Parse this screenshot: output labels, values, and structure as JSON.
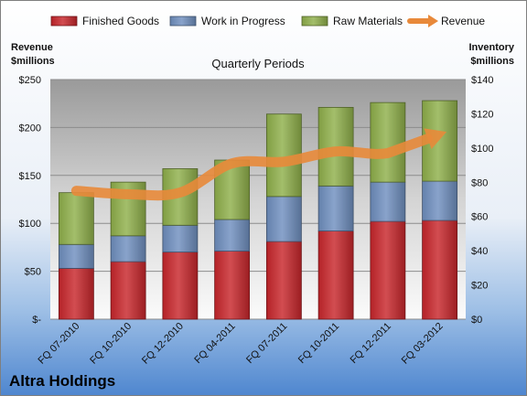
{
  "company": "Altra Holdings",
  "chart_data": {
    "type": "bar",
    "title": "Quarterly Periods",
    "stacked": true,
    "categories": [
      "FQ 07-2010",
      "FQ 10-2010",
      "FQ 12-2010",
      "FQ 04-2011",
      "FQ 07-2011",
      "FQ 10-2011",
      "FQ 12-2011",
      "FQ 03-2012"
    ],
    "series": [
      {
        "name": "Finished Goods",
        "color": "#c8262b",
        "axis": "left",
        "values": [
          53,
          60,
          70,
          71,
          81,
          92,
          102,
          103
        ]
      },
      {
        "name": "Work in Progress",
        "color": "#6f8fbf",
        "axis": "left",
        "values": [
          25,
          27,
          28,
          33,
          47,
          47,
          41,
          41
        ]
      },
      {
        "name": "Raw Materials",
        "color": "#8fb04a",
        "axis": "left",
        "values": [
          54,
          56,
          59,
          62,
          86,
          82,
          83,
          84
        ]
      },
      {
        "name": "Revenue",
        "type": "line",
        "color": "#e8893a",
        "axis": "right",
        "values": [
          75,
          73,
          74,
          91,
          92,
          98,
          97,
          108
        ]
      }
    ],
    "ylabel_left": [
      "Revenue",
      "$millions"
    ],
    "ylabel_right": [
      "Inventory",
      "$millions"
    ],
    "ylim_left": [
      0,
      250
    ],
    "ylim_right": [
      0,
      140
    ],
    "yticks_left": [
      "$-",
      "$50",
      "$100",
      "$150",
      "$200",
      "$250"
    ],
    "yticks_right": [
      "$0",
      "$20",
      "$40",
      "$60",
      "$80",
      "$100",
      "$120",
      "$140"
    ],
    "grid": true,
    "legend_position": "top"
  }
}
